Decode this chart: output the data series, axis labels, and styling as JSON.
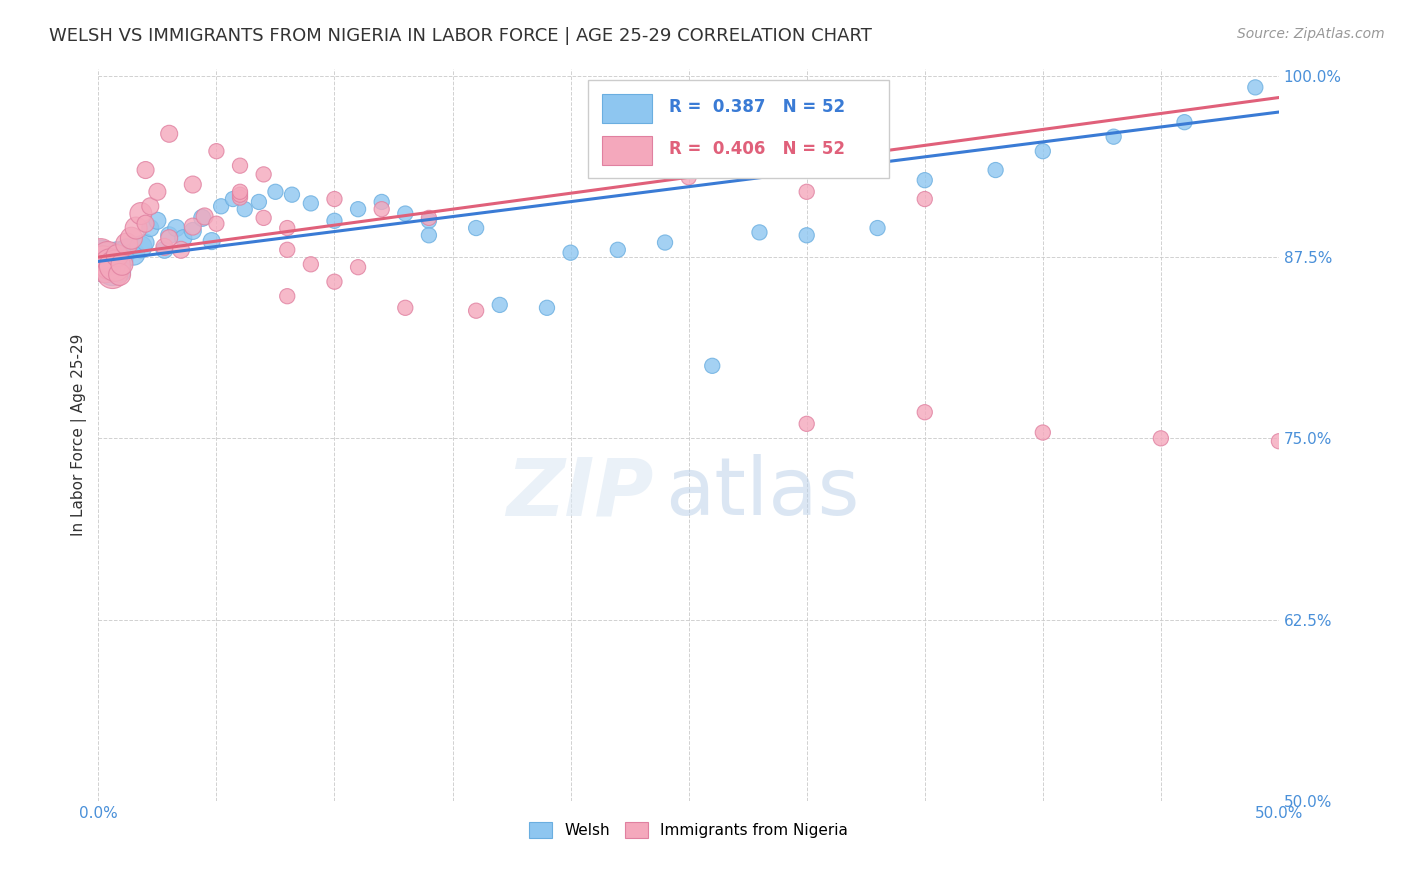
{
  "title": "WELSH VS IMMIGRANTS FROM NIGERIA IN LABOR FORCE | AGE 25-29 CORRELATION CHART",
  "source": "Source: ZipAtlas.com",
  "ylabel": "In Labor Force | Age 25-29",
  "xlim": [
    0.0,
    0.5
  ],
  "ylim": [
    0.5,
    1.005
  ],
  "xticks": [
    0.0,
    0.05,
    0.1,
    0.15,
    0.2,
    0.25,
    0.3,
    0.35,
    0.4,
    0.45,
    0.5
  ],
  "yticks": [
    0.5,
    0.625,
    0.75,
    0.875,
    1.0
  ],
  "yticklabels": [
    "50.0%",
    "62.5%",
    "75.0%",
    "87.5%",
    "100.0%"
  ],
  "legend_labels": [
    "Welsh",
    "Immigrants from Nigeria"
  ],
  "blue_color": "#8ec6f0",
  "pink_color": "#f4a8bc",
  "blue_line_color": "#3a7bd5",
  "pink_line_color": "#e0607a",
  "R_blue": 0.387,
  "N_blue": 52,
  "R_pink": 0.406,
  "N_pink": 52,
  "watermark_zip": "ZIP",
  "watermark_atlas": "atlas",
  "title_color": "#333333",
  "axis_label_color": "#333333",
  "tick_color_y": "#4a90d9",
  "tick_color_x": "#4a90d9",
  "blue_scatter_x": [
    0.001,
    0.002,
    0.003,
    0.004,
    0.005,
    0.006,
    0.007,
    0.008,
    0.009,
    0.01,
    0.012,
    0.015,
    0.018,
    0.02,
    0.022,
    0.025,
    0.028,
    0.03,
    0.033,
    0.036,
    0.04,
    0.044,
    0.048,
    0.052,
    0.057,
    0.062,
    0.068,
    0.075,
    0.082,
    0.09,
    0.1,
    0.11,
    0.12,
    0.13,
    0.14,
    0.16,
    0.19,
    0.22,
    0.26,
    0.3,
    0.35,
    0.4,
    0.43,
    0.46,
    0.49,
    0.14,
    0.17,
    0.2,
    0.24,
    0.28,
    0.33,
    0.38
  ],
  "blue_scatter_y": [
    0.876,
    0.872,
    0.868,
    0.874,
    0.869,
    0.866,
    0.871,
    0.878,
    0.865,
    0.873,
    0.88,
    0.877,
    0.882,
    0.885,
    0.895,
    0.9,
    0.88,
    0.89,
    0.895,
    0.888,
    0.893,
    0.902,
    0.886,
    0.91,
    0.915,
    0.908,
    0.913,
    0.92,
    0.918,
    0.912,
    0.9,
    0.908,
    0.913,
    0.905,
    0.9,
    0.895,
    0.84,
    0.88,
    0.8,
    0.89,
    0.928,
    0.948,
    0.958,
    0.968,
    0.992,
    0.89,
    0.842,
    0.878,
    0.885,
    0.892,
    0.895,
    0.935
  ],
  "pink_scatter_x": [
    0.001,
    0.002,
    0.003,
    0.004,
    0.005,
    0.006,
    0.007,
    0.008,
    0.009,
    0.01,
    0.012,
    0.014,
    0.016,
    0.018,
    0.02,
    0.022,
    0.025,
    0.028,
    0.03,
    0.035,
    0.04,
    0.045,
    0.05,
    0.06,
    0.07,
    0.08,
    0.1,
    0.12,
    0.14,
    0.08,
    0.1,
    0.13,
    0.16,
    0.06,
    0.08,
    0.09,
    0.11,
    0.03,
    0.05,
    0.06,
    0.07,
    0.02,
    0.04,
    0.06,
    0.3,
    0.35,
    0.4,
    0.45,
    0.5,
    0.25,
    0.3,
    0.35
  ],
  "pink_scatter_y": [
    0.877,
    0.872,
    0.868,
    0.875,
    0.87,
    0.864,
    0.869,
    0.876,
    0.863,
    0.87,
    0.884,
    0.888,
    0.895,
    0.905,
    0.898,
    0.91,
    0.92,
    0.882,
    0.888,
    0.88,
    0.896,
    0.903,
    0.898,
    0.916,
    0.902,
    0.895,
    0.915,
    0.908,
    0.902,
    0.848,
    0.858,
    0.84,
    0.838,
    0.918,
    0.88,
    0.87,
    0.868,
    0.96,
    0.948,
    0.938,
    0.932,
    0.935,
    0.925,
    0.92,
    0.76,
    0.768,
    0.754,
    0.75,
    0.748,
    0.93,
    0.92,
    0.915
  ]
}
